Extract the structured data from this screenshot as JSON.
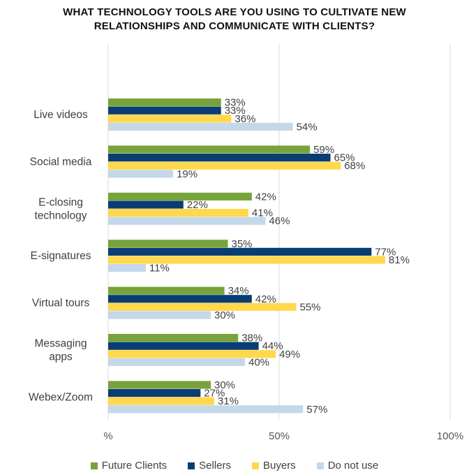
{
  "chart_data": {
    "type": "bar",
    "orientation": "horizontal",
    "title_lines": [
      "WHAT TECHNOLOGY TOOLS ARE YOU USING TO CULTIVATE NEW",
      "RELATIONSHIPS AND COMMUNICATE WITH CLIENTS?"
    ],
    "categories": [
      [
        "Live videos"
      ],
      [
        "Social media"
      ],
      [
        "E-closing",
        "technology"
      ],
      [
        "E-signatures"
      ],
      [
        "Virtual tours"
      ],
      [
        "Messaging",
        "apps"
      ],
      [
        "Webex/Zoom"
      ]
    ],
    "series": [
      {
        "name": "Future Clients",
        "color": "#77a33b",
        "values": [
          33,
          59,
          42,
          35,
          34,
          38,
          30
        ]
      },
      {
        "name": "Sellers",
        "color": "#0a3d73",
        "values": [
          33,
          65,
          22,
          77,
          42,
          44,
          27
        ]
      },
      {
        "name": "Buyers",
        "color": "#ffd84d",
        "values": [
          36,
          68,
          41,
          81,
          55,
          49,
          31
        ]
      },
      {
        "name": "Do not use",
        "color": "#c4d8ea",
        "values": [
          54,
          19,
          46,
          11,
          30,
          40,
          57
        ]
      }
    ],
    "value_suffix": "%",
    "xlim": [
      0,
      100
    ],
    "x_ticks": [
      {
        "value": 0,
        "label": "%"
      },
      {
        "value": 50,
        "label": "50%"
      },
      {
        "value": 100,
        "label": "100%"
      }
    ],
    "grid": true,
    "legend_position": "bottom"
  }
}
